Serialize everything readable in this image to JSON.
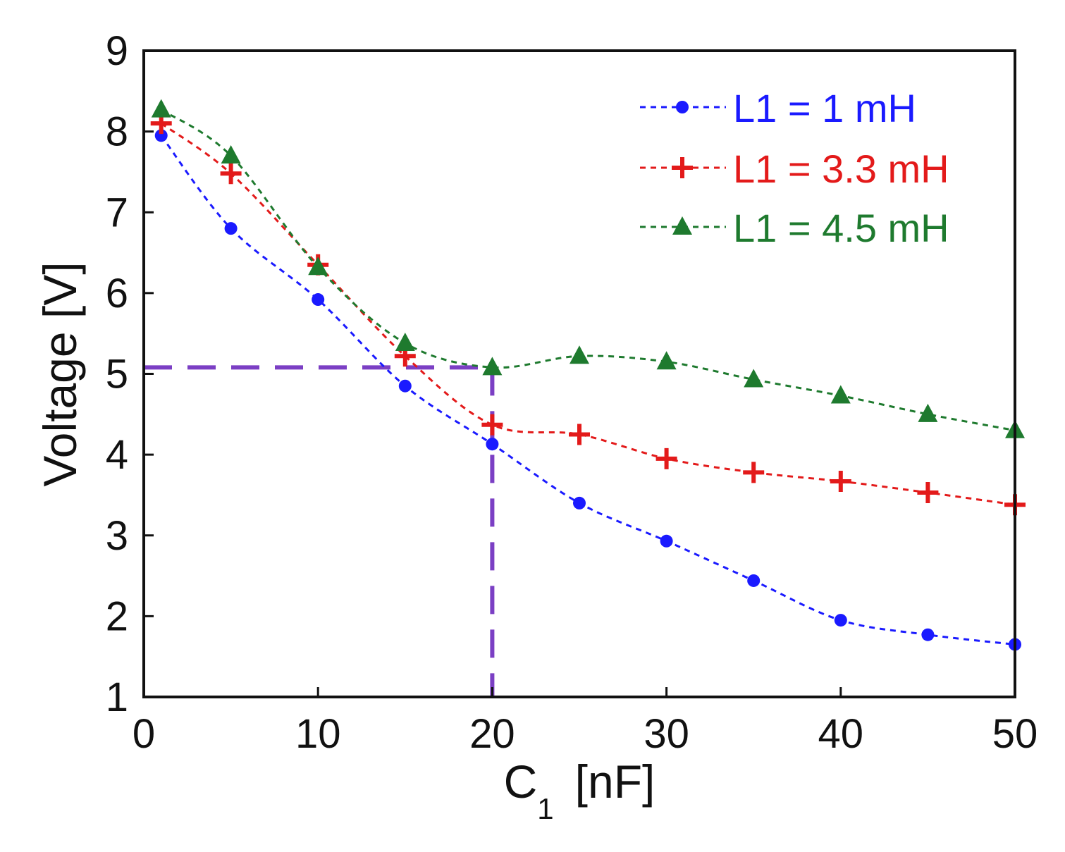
{
  "chart_data": {
    "type": "line",
    "title": "",
    "xlabel": "C",
    "xlabel_subscript": "1",
    "xlabel_unit": "[nF]",
    "ylabel": "Voltage [V]",
    "xlim": [
      0,
      50
    ],
    "ylim": [
      1,
      9
    ],
    "xticks": [
      0,
      10,
      20,
      30,
      40,
      50
    ],
    "yticks": [
      1,
      2,
      3,
      4,
      5,
      6,
      7,
      8,
      9
    ],
    "grid": false,
    "legend_position": "top-right",
    "series": [
      {
        "name": "L1 = 1 mH",
        "color": "#1a1aff",
        "marker": "circle",
        "x": [
          1,
          5,
          10,
          15,
          20,
          25,
          30,
          35,
          40,
          45,
          50
        ],
        "y": [
          7.95,
          6.8,
          5.92,
          4.85,
          4.13,
          3.4,
          2.93,
          2.44,
          1.95,
          1.77,
          1.65
        ]
      },
      {
        "name": "L1 = 3.3 mH",
        "color": "#e31a1a",
        "marker": "plus",
        "x": [
          1,
          5,
          10,
          15,
          20,
          25,
          30,
          35,
          40,
          45,
          50
        ],
        "y": [
          8.1,
          7.48,
          6.35,
          5.22,
          4.37,
          4.25,
          3.95,
          3.78,
          3.67,
          3.53,
          3.38
        ]
      },
      {
        "name": "L1 = 4.5 mH",
        "color": "#1e7a2e",
        "marker": "triangle",
        "x": [
          1,
          5,
          10,
          15,
          20,
          25,
          30,
          35,
          40,
          45,
          50
        ],
        "y": [
          8.27,
          7.7,
          6.32,
          5.38,
          5.08,
          5.22,
          5.15,
          4.93,
          4.73,
          4.5,
          4.3
        ]
      }
    ],
    "annotations": [
      {
        "type": "reference-lines",
        "color": "#7b3fc4",
        "x": 20,
        "y": 5.08,
        "style": "dashed"
      }
    ]
  }
}
